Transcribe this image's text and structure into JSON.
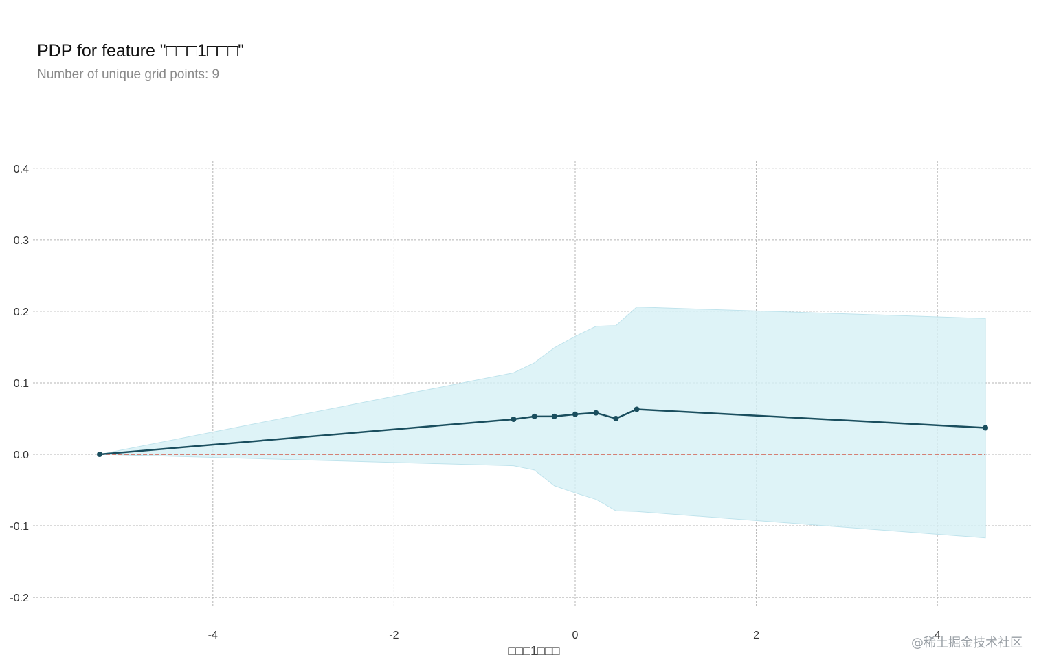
{
  "chart_data": {
    "type": "line",
    "title": "PDP for feature \"□□□1□□□\"",
    "subtitle": "Number of unique grid points: 9",
    "xlabel": "□□□1□□□",
    "ylabel": "",
    "xlim": [
      -5.25,
      4.85
    ],
    "ylim": [
      -0.22,
      0.41
    ],
    "xticks": [
      -4,
      -2,
      0,
      2,
      4
    ],
    "yticks": [
      -0.2,
      -0.1,
      0.0,
      0.1,
      0.2,
      0.3,
      0.4
    ],
    "grid": true,
    "x": [
      -5.25,
      -0.68,
      -0.45,
      -0.23,
      0.0,
      0.23,
      0.45,
      0.68,
      4.53
    ],
    "series": [
      {
        "values": [
          0.0,
          0.049,
          0.053,
          0.053,
          0.056,
          0.058,
          0.05,
          0.063,
          0.037
        ],
        "color": "#1a4e5e"
      }
    ],
    "band_x": [
      -5.25,
      -0.68,
      -0.45,
      -0.23,
      0.0,
      0.23,
      0.45,
      0.68,
      4.53
    ],
    "band_upper": [
      0.0,
      0.114,
      0.128,
      0.149,
      0.165,
      0.179,
      0.18,
      0.206,
      0.19
    ],
    "band_lower": [
      0.0,
      -0.016,
      -0.022,
      -0.044,
      -0.054,
      -0.063,
      -0.079,
      -0.08,
      -0.117
    ],
    "band_color": "#d6f0f5",
    "reference_line": {
      "y": 0.0,
      "color": "#d05a4a"
    }
  },
  "watermark": "@稀土掘金技术社区"
}
